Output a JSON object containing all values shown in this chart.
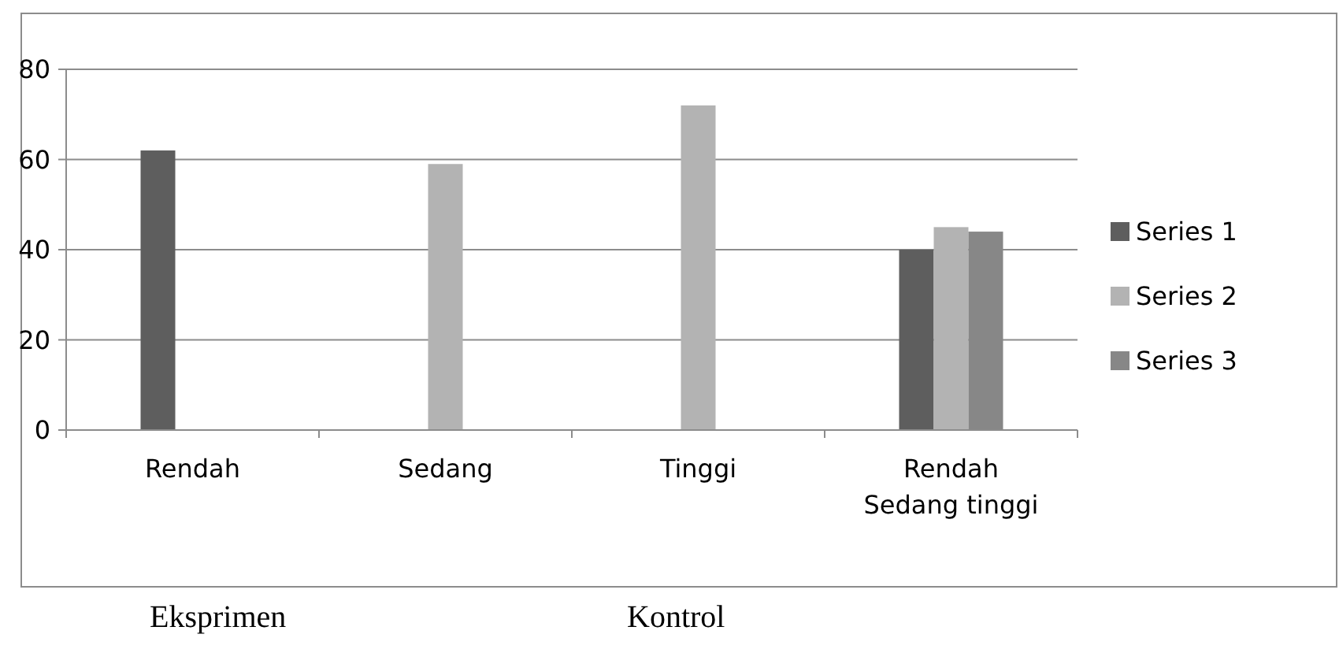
{
  "chart_data": {
    "type": "bar",
    "categories": [
      "Rendah",
      "Sedang",
      "Tinggi",
      "Rendah\nSedang tinggi"
    ],
    "series": [
      {
        "name": "Series 1",
        "color": "#5e5e5e",
        "values": [
          62,
          null,
          null,
          40
        ]
      },
      {
        "name": "Series 2",
        "color": "#b3b3b3",
        "values": [
          null,
          59,
          72,
          45
        ]
      },
      {
        "name": "Series 3",
        "color": "#878787",
        "values": [
          null,
          null,
          null,
          44
        ]
      }
    ],
    "ylim": [
      0,
      80
    ],
    "yticks": [
      0,
      20,
      40,
      60,
      80
    ],
    "grid": "y",
    "legend": "right",
    "annotations": [
      "Eksprimen",
      "Kontrol"
    ]
  }
}
